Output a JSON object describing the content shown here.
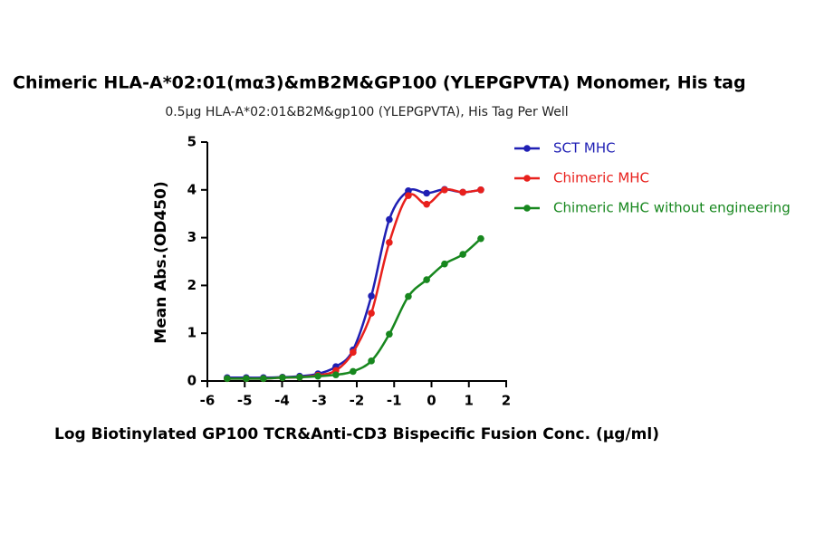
{
  "chart_data": {
    "type": "line",
    "title": "Chimeric HLA-A*02:01(mα3)&mB2M&GP100 (YLEPGPVTA) Monomer, His tag",
    "subtitle": "0.5μg HLA-A*02:01&B2M&gp100 (YLEPGPVTA), His Tag Per Well",
    "x_label": "Log Biotinylated GP100 TCR&Anti-CD3 Bispecific Fusion Conc. (μg/ml)",
    "y_label": "Mean Abs.(OD450)",
    "x": [
      -5.47,
      -4.96,
      -4.5,
      -3.99,
      -3.53,
      -3.04,
      -2.56,
      -2.1,
      -1.61,
      -1.13,
      -0.62,
      -0.13,
      0.35,
      0.84,
      1.32
    ],
    "series": [
      {
        "name": "SCT MHC",
        "color": "#1f1fb4",
        "values": [
          0.07,
          0.07,
          0.07,
          0.08,
          0.1,
          0.15,
          0.3,
          0.65,
          1.78,
          3.38,
          3.98,
          3.93,
          4.01,
          3.95,
          4.0
        ]
      },
      {
        "name": "Chimeric MHC",
        "color": "#e8201c",
        "values": [
          0.05,
          0.05,
          0.05,
          0.07,
          0.08,
          0.12,
          0.22,
          0.6,
          1.42,
          2.9,
          3.88,
          3.7,
          4.0,
          3.95,
          4.0
        ]
      },
      {
        "name": "Chimeric MHC without engineering",
        "color": "#17871e",
        "values": [
          0.05,
          0.05,
          0.05,
          0.07,
          0.08,
          0.1,
          0.13,
          0.2,
          0.42,
          0.98,
          1.77,
          2.12,
          2.45,
          2.65,
          2.98
        ]
      }
    ],
    "xlim": [
      -6,
      2
    ],
    "xticks": [
      -6,
      -5,
      -4,
      -3,
      -2,
      -1,
      0,
      1,
      2
    ],
    "ylim": [
      0,
      5
    ],
    "yticks": [
      0,
      1,
      2,
      3,
      4,
      5
    ],
    "legend": "right"
  }
}
